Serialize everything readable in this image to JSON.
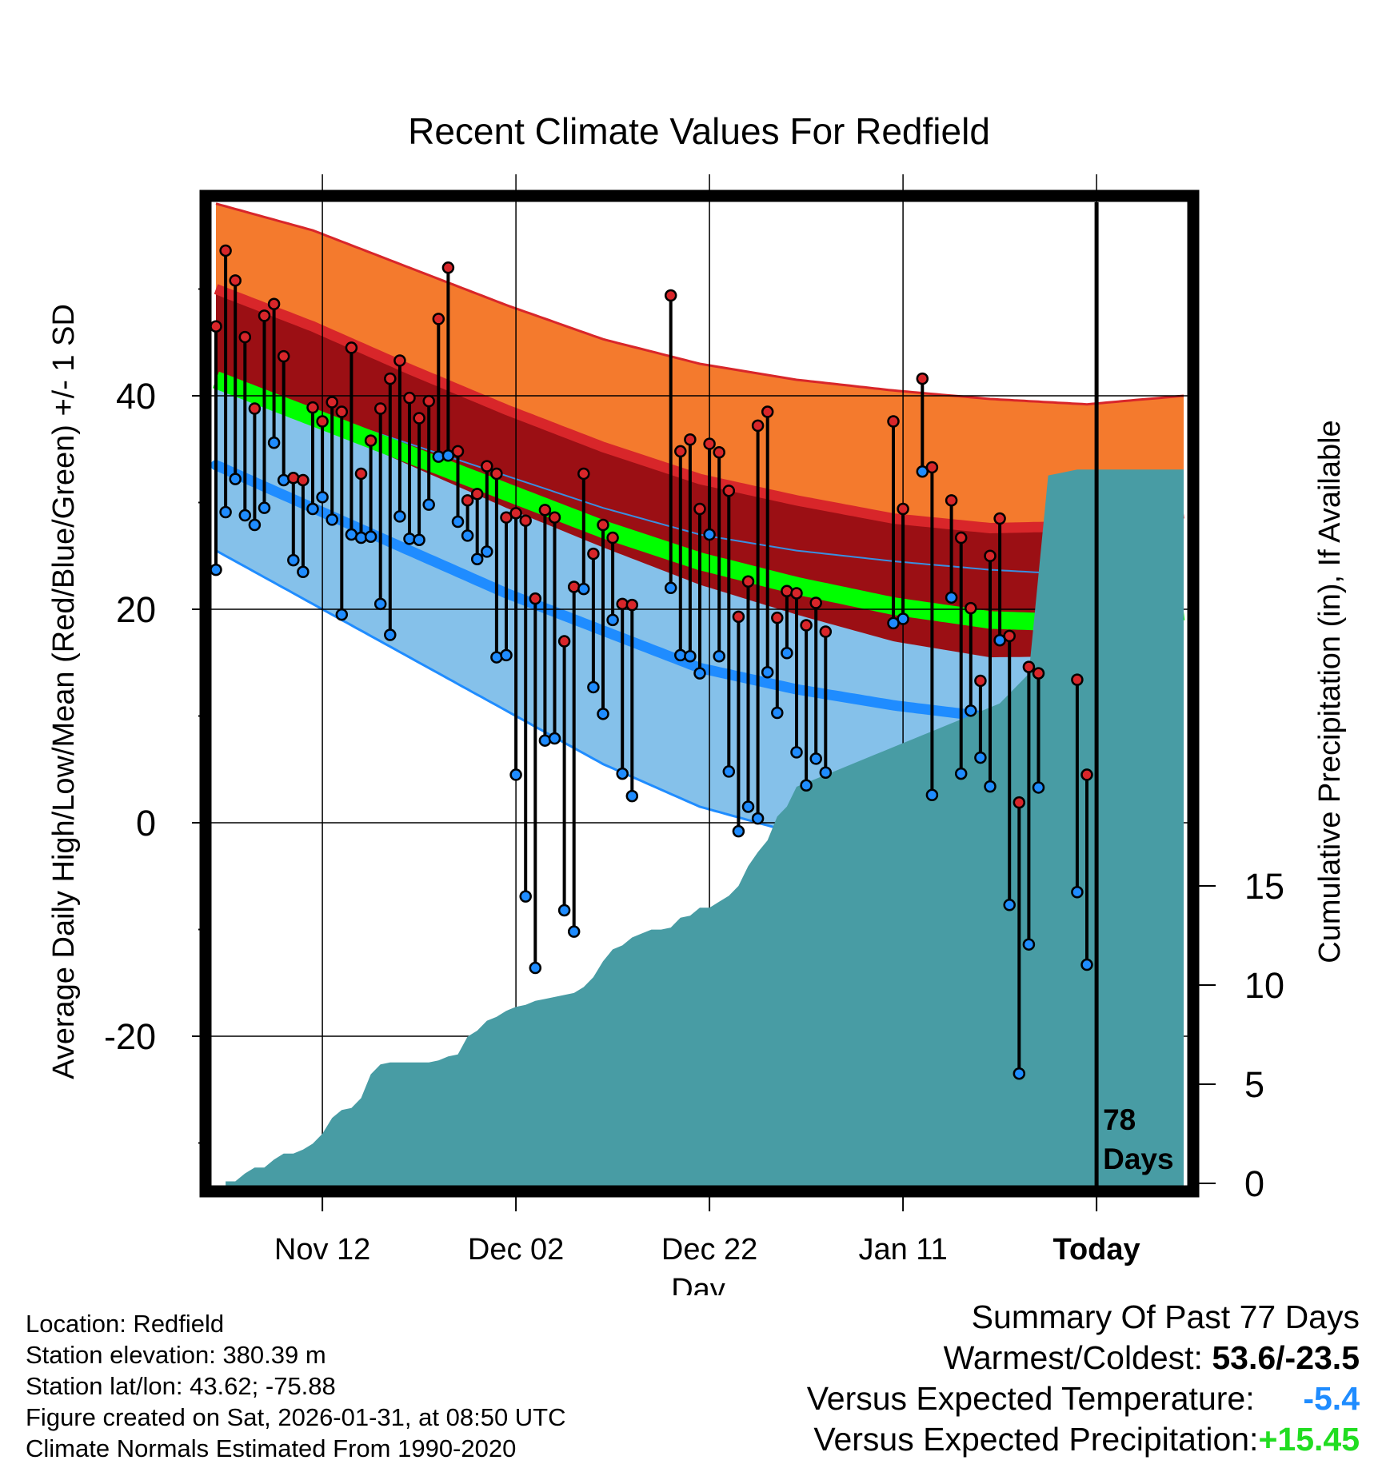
{
  "chart_data": {
    "type": "line",
    "title": "Recent Climate Values For Redfield",
    "xlabel": "Day",
    "ylabel": "Average Daily High/Low/Mean (Red/Blue/Green) +/- 1 SD",
    "y2label": "Cumulative Precipitation (in), If Available",
    "x_tick_labels": [
      "Nov 12",
      "Dec 02",
      "Dec 22",
      "Jan 11",
      "Today"
    ],
    "x_tick_days": [
      11,
      31,
      51,
      71,
      91
    ],
    "x_range": [
      0,
      100
    ],
    "y_range": [
      -33.5,
      58
    ],
    "y_ticks": [
      -20,
      0,
      20,
      40
    ],
    "y_tick_labels": [
      "-20",
      "0",
      "20",
      "40"
    ],
    "y2_range": [
      0,
      20
    ],
    "y2_ticks": [
      0,
      5,
      10,
      15
    ],
    "y2_tick_labels": [
      "0",
      "5",
      "10",
      "15"
    ],
    "today_day": 91,
    "today_annotation": [
      "78",
      "Days"
    ],
    "normal_high_mean": [
      [
        0,
        50
      ],
      [
        10,
        46.5
      ],
      [
        20,
        42.5
      ],
      [
        30,
        38.7
      ],
      [
        40,
        35.2
      ],
      [
        50,
        32.2
      ],
      [
        60,
        30.2
      ],
      [
        70,
        28.5
      ],
      [
        80,
        27.6
      ],
      [
        90,
        27.8
      ],
      [
        100,
        29
      ]
    ],
    "normal_high_sd_upper": [
      [
        0,
        58
      ],
      [
        10,
        55.5
      ],
      [
        20,
        52
      ],
      [
        30,
        48.5
      ],
      [
        40,
        45.3
      ],
      [
        50,
        43
      ],
      [
        60,
        41.5
      ],
      [
        70,
        40.5
      ],
      [
        80,
        39.7
      ],
      [
        90,
        39.2
      ],
      [
        100,
        40
      ]
    ],
    "normal_high_sd_lower": [
      [
        0,
        42
      ],
      [
        10,
        37.5
      ],
      [
        20,
        33.5
      ],
      [
        30,
        29.5
      ],
      [
        40,
        25.8
      ],
      [
        50,
        22.3
      ],
      [
        60,
        19.5
      ],
      [
        70,
        17
      ],
      [
        80,
        15.5
      ],
      [
        90,
        15.6
      ],
      [
        100,
        17.5
      ]
    ],
    "normal_mean": [
      [
        0,
        41.5
      ],
      [
        10,
        38
      ],
      [
        20,
        34.5
      ],
      [
        30,
        31
      ],
      [
        40,
        27.5
      ],
      [
        50,
        24.5
      ],
      [
        60,
        22.2
      ],
      [
        70,
        20.3
      ],
      [
        80,
        19
      ],
      [
        90,
        18.7
      ],
      [
        100,
        19.8
      ]
    ],
    "normal_low_mean": [
      [
        0,
        33.5
      ],
      [
        10,
        29.5
      ],
      [
        20,
        25.5
      ],
      [
        30,
        21.5
      ],
      [
        40,
        18
      ],
      [
        50,
        14.5
      ],
      [
        60,
        12.5
      ],
      [
        70,
        11
      ],
      [
        79,
        10
      ]
    ],
    "normal_low_sd_upper": [
      [
        0,
        41
      ],
      [
        10,
        38.5
      ],
      [
        20,
        35.5
      ],
      [
        30,
        32.5
      ],
      [
        40,
        29.5
      ],
      [
        50,
        27
      ],
      [
        60,
        25.5
      ],
      [
        70,
        24.5
      ],
      [
        80,
        23.7
      ],
      [
        90,
        23.2
      ],
      [
        100,
        24
      ]
    ],
    "normal_low_sd_lower": [
      [
        0,
        25.5
      ],
      [
        10,
        20.5
      ],
      [
        20,
        15.5
      ],
      [
        30,
        10.5
      ],
      [
        40,
        5.5
      ],
      [
        50,
        1.5
      ],
      [
        60,
        -1
      ]
    ],
    "daily_high": [
      46.5,
      53.6,
      50.8,
      45.5,
      38.8,
      47.5,
      48.6,
      43.7,
      32.3,
      32.1,
      38.9,
      37.6,
      39.4,
      38.5,
      44.5,
      32.7,
      35.8,
      38.8,
      41.6,
      43.3,
      39.8,
      37.9,
      39.5,
      47.2,
      52.0,
      34.8,
      30.2,
      30.8,
      33.4,
      32.7,
      28.6,
      29.0,
      28.3,
      21.0,
      29.3,
      28.6,
      17.0,
      22.1,
      32.7,
      25.2,
      27.9,
      26.7,
      20.5,
      20.4,
      null,
      null,
      null,
      49.4,
      34.8,
      35.9,
      29.4,
      35.5,
      34.7,
      31.1,
      19.3,
      22.6,
      37.2,
      38.5,
      19.2,
      21.7,
      21.5,
      18.5,
      20.6,
      17.9,
      null,
      null,
      null,
      null,
      null,
      null,
      37.6,
      29.4,
      null,
      41.6,
      33.3,
      null,
      30.2,
      26.7,
      20.1,
      13.3,
      25.0,
      28.5,
      17.5,
      1.9,
      14.6,
      14.0,
      null,
      null,
      null,
      13.4,
      4.5
    ],
    "daily_low": [
      23.7,
      29.1,
      32.2,
      28.8,
      27.9,
      29.5,
      35.6,
      32.1,
      24.6,
      23.5,
      29.4,
      30.5,
      28.4,
      19.5,
      27.0,
      26.7,
      26.8,
      20.5,
      17.6,
      28.7,
      26.6,
      26.5,
      29.8,
      34.3,
      34.4,
      28.2,
      26.9,
      24.7,
      25.4,
      15.5,
      15.7,
      4.5,
      -6.9,
      -13.6,
      7.7,
      7.9,
      -8.2,
      -10.2,
      21.9,
      12.7,
      10.2,
      19.0,
      4.6,
      2.5,
      null,
      null,
      null,
      22.0,
      15.7,
      15.6,
      14.0,
      27.0,
      15.6,
      4.8,
      -0.8,
      1.5,
      0.4,
      14.1,
      10.3,
      15.9,
      6.6,
      3.5,
      6.0,
      4.7,
      null,
      null,
      null,
      null,
      null,
      null,
      18.7,
      19.1,
      null,
      32.9,
      2.6,
      null,
      21.1,
      4.6,
      10.5,
      6.1,
      3.4,
      17.1,
      -7.7,
      -23.5,
      -11.4,
      3.3,
      null,
      null,
      null,
      -6.5,
      -13.3
    ],
    "cumulative_precip": [
      [
        0,
        0
      ],
      [
        1,
        0.1
      ],
      [
        2,
        0.1
      ],
      [
        3,
        0.5
      ],
      [
        4,
        0.8
      ],
      [
        5,
        0.8
      ],
      [
        6,
        1.2
      ],
      [
        7,
        1.5
      ],
      [
        8,
        1.5
      ],
      [
        9,
        1.7
      ],
      [
        10,
        2.0
      ],
      [
        11,
        2.5
      ],
      [
        12,
        3.3
      ],
      [
        13,
        3.7
      ],
      [
        14,
        3.8
      ],
      [
        15,
        4.3
      ],
      [
        16,
        5.5
      ],
      [
        17,
        6.0
      ],
      [
        18,
        6.1
      ],
      [
        19,
        6.1
      ],
      [
        20,
        6.1
      ],
      [
        21,
        6.1
      ],
      [
        22,
        6.1
      ],
      [
        23,
        6.2
      ],
      [
        24,
        6.4
      ],
      [
        25,
        6.5
      ],
      [
        26,
        7.4
      ],
      [
        27,
        7.7
      ],
      [
        28,
        8.2
      ],
      [
        29,
        8.4
      ],
      [
        30,
        8.7
      ],
      [
        31,
        8.9
      ],
      [
        32,
        9.0
      ],
      [
        33,
        9.2
      ],
      [
        34,
        9.3
      ],
      [
        35,
        9.4
      ],
      [
        36,
        9.5
      ],
      [
        37,
        9.6
      ],
      [
        38,
        9.9
      ],
      [
        39,
        10.4
      ],
      [
        40,
        11.2
      ],
      [
        41,
        11.8
      ],
      [
        42,
        12.0
      ],
      [
        43,
        12.4
      ],
      [
        44,
        12.6
      ],
      [
        45,
        12.8
      ],
      [
        46,
        12.8
      ],
      [
        47,
        12.9
      ],
      [
        48,
        13.4
      ],
      [
        49,
        13.5
      ],
      [
        50,
        13.9
      ],
      [
        51,
        13.9
      ],
      [
        52,
        14.2
      ],
      [
        53,
        14.5
      ],
      [
        54,
        15.0
      ],
      [
        55,
        16.0
      ],
      [
        56,
        16.7
      ],
      [
        57,
        17.3
      ],
      [
        58,
        18.5
      ],
      [
        59,
        19.0
      ],
      [
        60,
        20.0
      ]
    ],
    "cumulative_precip_scale_note": "secondary axis inches; plotted offset values",
    "precip_final": 15.45
  },
  "info": {
    "location": "Location: Redfield",
    "elevation": "Station elevation: 380.39 m",
    "latlon": "Station lat/lon: 43.62; -75.88",
    "created": "Figure created on Sat, 2026-01-31, at 08:50 UTC",
    "normals": "Climate Normals Estimated From 1990-2020"
  },
  "summary": {
    "title": "Summary Of Past 77 Days",
    "warm_cold_label": "Warmest/Coldest:",
    "warm_cold_value": "53.6/-23.5",
    "temp_label": "Versus Expected Temperature:",
    "temp_value": "-5.4",
    "precip_label": "Versus Expected Precipitation:",
    "precip_value": "+15.45"
  },
  "colors": {
    "orange_band": "#f47a2d",
    "dark_red_band": "#9b0f14",
    "high_line": "#d8262a",
    "green_line": "#00ff00",
    "light_blue_band": "#85c1ea",
    "low_line": "#1f8cff",
    "precip_fill": "#489ca4",
    "high_dot": "#d8262a",
    "low_dot": "#1f8cff"
  }
}
